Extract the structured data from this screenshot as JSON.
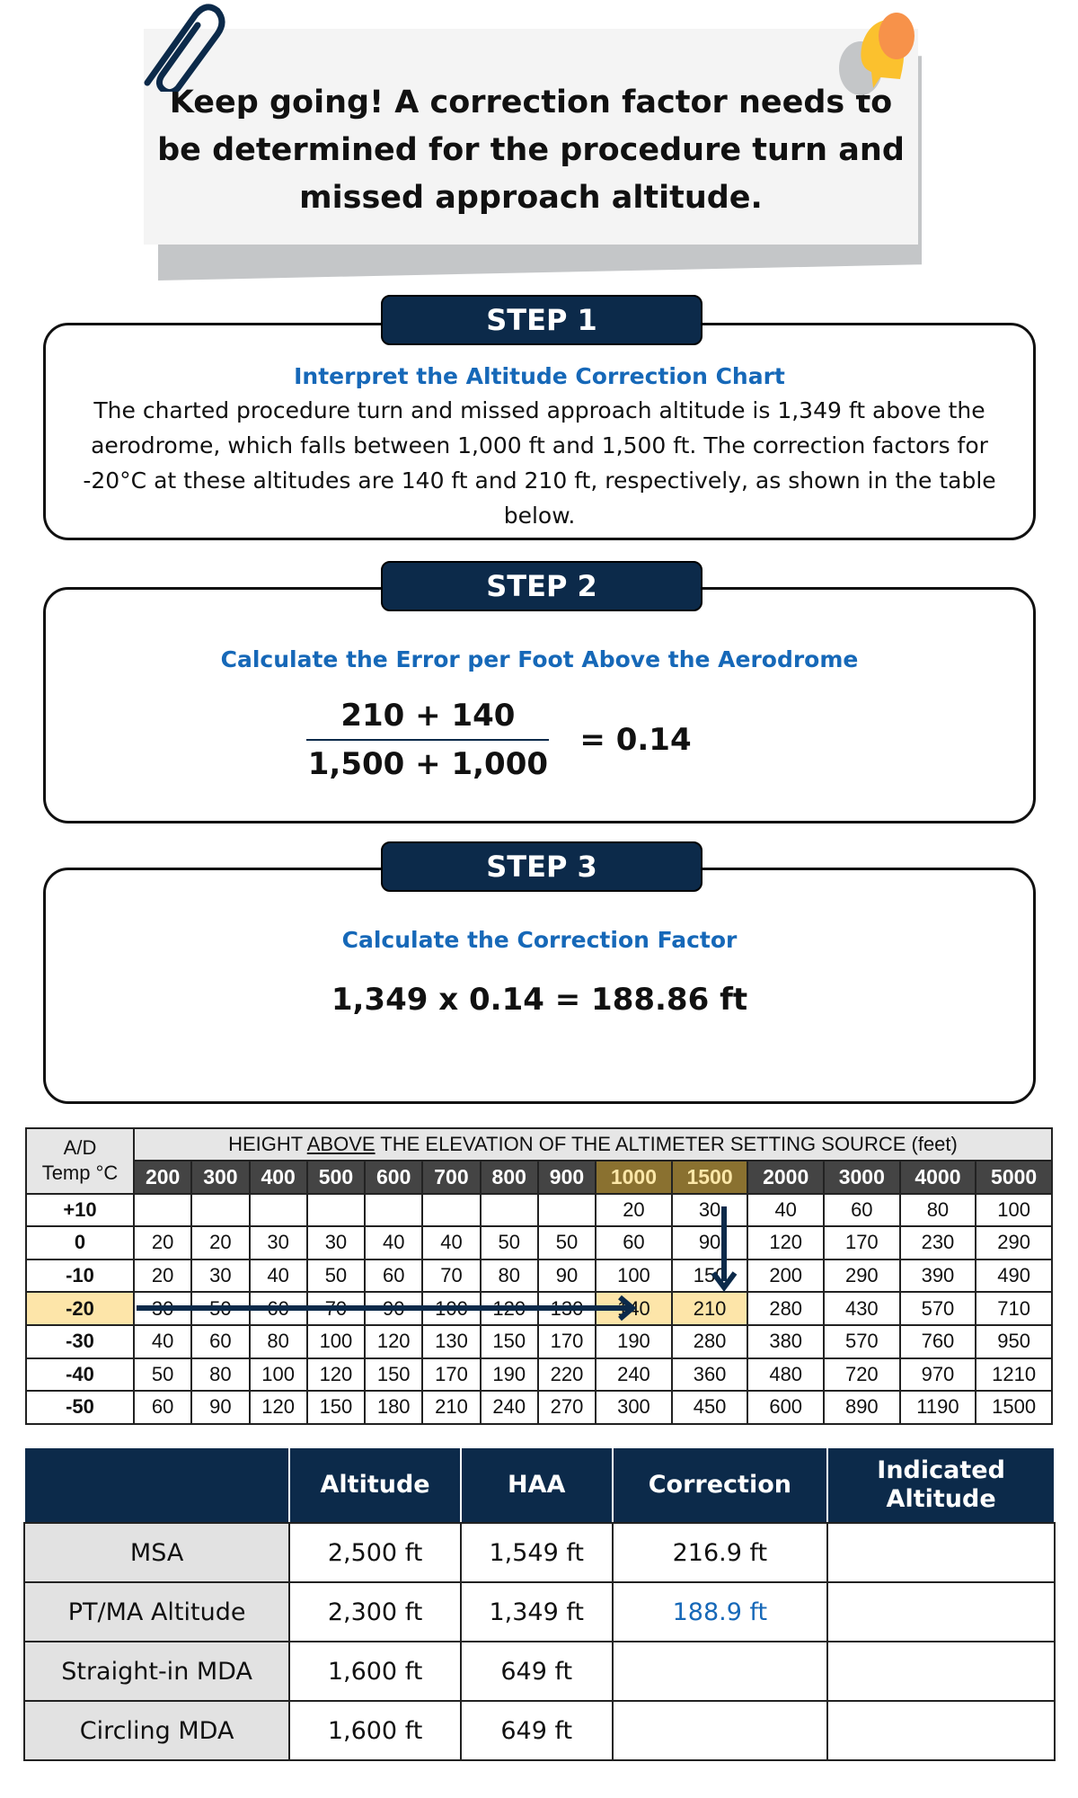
{
  "note": {
    "text": "Keep going! A correction factor needs to be determined for the procedure turn and missed approach altitude.",
    "icons": [
      "paperclip-icon",
      "pushpin-icon"
    ]
  },
  "steps": [
    {
      "badge": "STEP 1",
      "title": "Interpret the Altitude Correction Chart",
      "body": "The charted procedure turn and missed approach altitude is 1,349 ft above the aerodrome, which falls between 1,000 ft and 1,500 ft. The correction factors for -20°C at these altitudes are 140 ft and 210 ft, respectively, as shown in the table below."
    },
    {
      "badge": "STEP 2",
      "title": "Calculate the Error per Foot Above the Aerodrome",
      "numerator": "210 + 140",
      "denominator": "1,500 + 1,000",
      "result": "= 0.14"
    },
    {
      "badge": "STEP 3",
      "title": "Calculate the Correction Factor",
      "equation": "1,349 x 0.14 = 188.86 ft"
    }
  ],
  "chart": {
    "corner_top": "A/D",
    "corner_bottom": "Temp °C",
    "header_pre": "HEIGHT ",
    "header_u": "ABOVE",
    "header_post": " THE ELEVATION OF THE ALTIMETER SETTING SOURCE (feet)",
    "columns": [
      "200",
      "300",
      "400",
      "500",
      "600",
      "700",
      "800",
      "900",
      "1000",
      "1500",
      "2000",
      "3000",
      "4000",
      "5000"
    ],
    "rows": [
      {
        "temp": "+10",
        "values": [
          "",
          "",
          "",
          "",
          "",
          "",
          "",
          "",
          "20",
          "30",
          "40",
          "60",
          "80",
          "100"
        ]
      },
      {
        "temp": "0",
        "values": [
          "20",
          "20",
          "30",
          "30",
          "40",
          "40",
          "50",
          "50",
          "60",
          "90",
          "120",
          "170",
          "230",
          "290"
        ]
      },
      {
        "temp": "-10",
        "values": [
          "20",
          "30",
          "40",
          "50",
          "60",
          "70",
          "80",
          "90",
          "100",
          "150",
          "200",
          "290",
          "390",
          "490"
        ]
      },
      {
        "temp": "-20",
        "values": [
          "30",
          "50",
          "60",
          "70",
          "90",
          "100",
          "120",
          "130",
          "140",
          "210",
          "280",
          "430",
          "570",
          "710"
        ]
      },
      {
        "temp": "-30",
        "values": [
          "40",
          "60",
          "80",
          "100",
          "120",
          "130",
          "150",
          "170",
          "190",
          "280",
          "380",
          "570",
          "760",
          "950"
        ]
      },
      {
        "temp": "-40",
        "values": [
          "50",
          "80",
          "100",
          "120",
          "150",
          "170",
          "190",
          "220",
          "240",
          "360",
          "480",
          "720",
          "970",
          "1210"
        ]
      },
      {
        "temp": "-50",
        "values": [
          "60",
          "90",
          "120",
          "150",
          "180",
          "210",
          "240",
          "270",
          "300",
          "450",
          "600",
          "890",
          "1190",
          "1500"
        ]
      }
    ],
    "highlight_color": "#fde5a9",
    "arrow_color": "#0c2a4a"
  },
  "summary": {
    "headers": [
      "",
      "Altitude",
      "HAA",
      "Correction",
      "Indicated Altitude"
    ],
    "rows": [
      [
        "MSA",
        "2,500 ft",
        "1,549 ft",
        "216.9 ft",
        ""
      ],
      [
        "PT/MA Altitude",
        "2,300 ft",
        "1,349 ft",
        "188.9 ft",
        ""
      ],
      [
        "Straight-in MDA",
        "1,600 ft",
        "649 ft",
        "",
        ""
      ],
      [
        "Circling MDA",
        "1,600 ft",
        "649 ft",
        "",
        ""
      ]
    ]
  }
}
